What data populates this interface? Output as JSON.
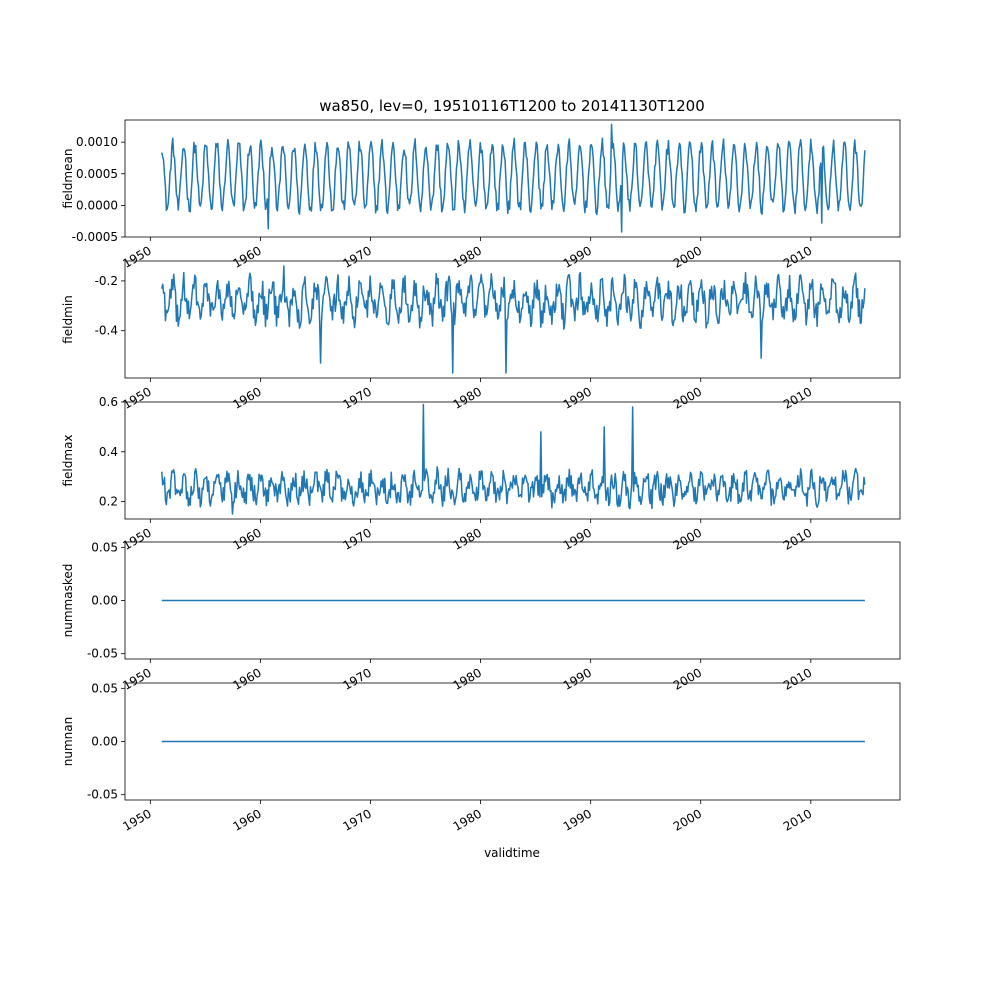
{
  "figure": {
    "title": "wa850, lev=0, 19510116T1200 to 20141130T1200",
    "xlabel": "validtime"
  },
  "colors": {
    "line": "#1f77b4",
    "axes": "#000000",
    "background": "#ffffff"
  },
  "x_ticks": [
    1950,
    1960,
    1970,
    1980,
    1990,
    2000,
    2010
  ],
  "x_range": [
    1947.7,
    2018.1
  ],
  "chart_data": [
    {
      "type": "line",
      "ylabel": "fieldmean",
      "ylim": [
        -0.0005,
        0.00135
      ],
      "yticks": [
        "-0.0005",
        "0.0000",
        "0.0005",
        "0.0010"
      ],
      "grid": false,
      "x_start": 1951.04,
      "x_end": 2014.91,
      "n_points": 767,
      "description_of_series": "seasonal cycle, annual oscillation",
      "series": [
        {
          "x_range": [
            1951.04,
            2014.91
          ],
          "baseline": 0.00045,
          "amplitude": 0.0005,
          "period_years": 1.0,
          "noise": 0.00012,
          "extremes": [
            {
              "x": 1960.7,
              "y": -0.00037
            },
            {
              "x": 1991.9,
              "y": 0.00128
            },
            {
              "x": 1992.8,
              "y": -0.00042
            },
            {
              "x": 2011.0,
              "y": -0.00028
            }
          ]
        }
      ]
    },
    {
      "type": "line",
      "ylabel": "fieldmin",
      "ylim": [
        -0.59,
        -0.12
      ],
      "yticks": [
        "-0.4",
        "-0.2"
      ],
      "grid": false,
      "series": [
        {
          "x_range": [
            1951.04,
            2014.91
          ],
          "baseline": -0.28,
          "amplitude": 0.06,
          "period_years": 1.0,
          "noise": 0.055,
          "extremes": [
            {
              "x": 1965.5,
              "y": -0.53
            },
            {
              "x": 1977.5,
              "y": -0.57
            },
            {
              "x": 1982.3,
              "y": -0.57
            },
            {
              "x": 1962.1,
              "y": -0.14
            },
            {
              "x": 2005.5,
              "y": -0.51
            }
          ]
        }
      ]
    },
    {
      "type": "line",
      "ylabel": "fieldmax",
      "ylim": [
        0.13,
        0.6
      ],
      "yticks": [
        "0.2",
        "0.4",
        "0.6"
      ],
      "grid": false,
      "series": [
        {
          "x_range": [
            1951.04,
            2014.91
          ],
          "baseline": 0.255,
          "amplitude": 0.04,
          "period_years": 1.0,
          "noise": 0.045,
          "extremes": [
            {
              "x": 1974.8,
              "y": 0.59
            },
            {
              "x": 1993.8,
              "y": 0.58
            },
            {
              "x": 1985.5,
              "y": 0.48
            },
            {
              "x": 1991.2,
              "y": 0.5
            },
            {
              "x": 1957.5,
              "y": 0.15
            }
          ]
        }
      ]
    },
    {
      "type": "line",
      "ylabel": "nummasked",
      "ylim": [
        -0.055,
        0.055
      ],
      "yticks": [
        "-0.05",
        "0.00",
        "0.05"
      ],
      "grid": false,
      "series": [
        {
          "x_range": [
            1951.04,
            2014.91
          ],
          "constant": 0.0
        }
      ]
    },
    {
      "type": "line",
      "ylabel": "numnan",
      "ylim": [
        -0.055,
        0.055
      ],
      "yticks": [
        "-0.05",
        "0.00",
        "0.05"
      ],
      "grid": false,
      "series": [
        {
          "x_range": [
            1951.04,
            2014.91
          ],
          "constant": 0.0
        }
      ]
    }
  ]
}
